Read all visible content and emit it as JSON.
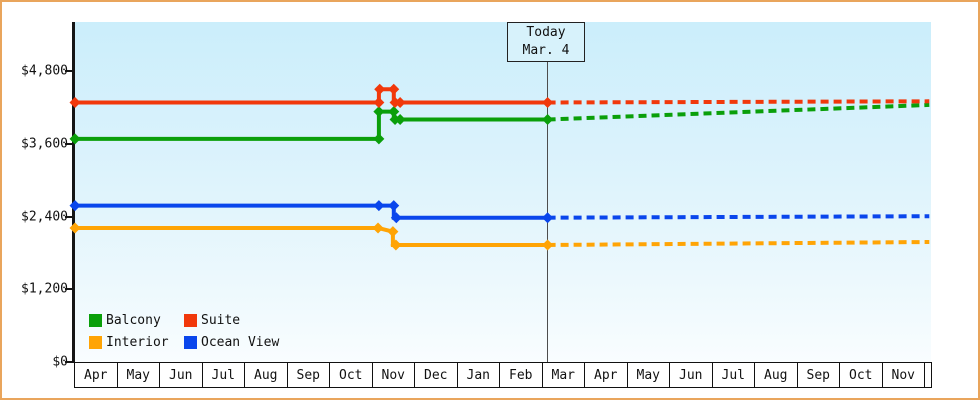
{
  "window": {
    "title": "Cruise price history chart"
  },
  "colors": {
    "frame_border": "#e9a55c",
    "plot_background_top": "#cbeefb",
    "plot_background_bottom": "#f9fdff",
    "axis": "#151515",
    "today_line": "#4d4d4d"
  },
  "chart_data": {
    "type": "line",
    "title": "",
    "xlabel": "",
    "ylabel": "",
    "ylim": [
      0,
      4800
    ],
    "grid": false,
    "legend_position": "bottom-left",
    "x_months": [
      "Apr",
      "May",
      "Jun",
      "Jul",
      "Aug",
      "Sep",
      "Oct",
      "Nov",
      "Dec",
      "Jan",
      "Feb",
      "Mar",
      "Apr",
      "May",
      "Jun",
      "Jul",
      "Aug",
      "Sep",
      "Oct",
      "Nov"
    ],
    "y_ticks": [
      {
        "label": "$0",
        "value": 0
      },
      {
        "label": "$1,200",
        "value": 1200
      },
      {
        "label": "$2,400",
        "value": 2400
      },
      {
        "label": "$3,600",
        "value": 3600
      },
      {
        "label": "$4,800",
        "value": 4800
      }
    ],
    "today": {
      "line1": "Today",
      "line2": "Mar. 4",
      "month_frac": 11.12
    },
    "series": [
      {
        "name": "Balcony",
        "color": "#0a9f0a",
        "solid": [
          [
            0,
            3680
          ],
          [
            7.15,
            3680
          ],
          [
            7.15,
            4130
          ],
          [
            7.5,
            4130
          ],
          [
            7.5,
            4000
          ],
          [
            11.12,
            4000
          ]
        ],
        "markers": [
          [
            0,
            3680
          ],
          [
            7.15,
            3680
          ],
          [
            7.15,
            4130
          ],
          [
            7.5,
            4130
          ],
          [
            7.53,
            4000
          ],
          [
            7.65,
            4000
          ],
          [
            11.12,
            4000
          ]
        ],
        "forecast": [
          [
            11.12,
            4000
          ],
          [
            20.1,
            4240
          ]
        ]
      },
      {
        "name": "Suite",
        "color": "#f1380b",
        "solid": [
          [
            0,
            4280
          ],
          [
            7.15,
            4280
          ],
          [
            7.15,
            4500
          ],
          [
            7.5,
            4500
          ],
          [
            7.5,
            4280
          ],
          [
            11.12,
            4280
          ]
        ],
        "markers": [
          [
            0,
            4280
          ],
          [
            7.15,
            4280
          ],
          [
            7.17,
            4500
          ],
          [
            7.5,
            4500
          ],
          [
            7.53,
            4280
          ],
          [
            7.65,
            4280
          ],
          [
            11.12,
            4280
          ]
        ],
        "forecast": [
          [
            11.12,
            4280
          ],
          [
            20.1,
            4300
          ]
        ]
      },
      {
        "name": "Interior",
        "color": "#ffa405",
        "solid": [
          [
            0,
            2210
          ],
          [
            7.13,
            2210
          ],
          [
            7.48,
            2150
          ],
          [
            7.48,
            1930
          ],
          [
            11.12,
            1930
          ]
        ],
        "markers": [
          [
            0,
            2210
          ],
          [
            7.13,
            2210
          ],
          [
            7.48,
            2150
          ],
          [
            7.55,
            1930
          ],
          [
            11.12,
            1930
          ]
        ],
        "forecast": [
          [
            11.12,
            1930
          ],
          [
            20.1,
            1980
          ]
        ]
      },
      {
        "name": "Ocean View",
        "color": "#0a46ec",
        "solid": [
          [
            0,
            2580
          ],
          [
            7.15,
            2580
          ],
          [
            7.5,
            2580
          ],
          [
            7.5,
            2380
          ],
          [
            11.12,
            2380
          ]
        ],
        "markers": [
          [
            0,
            2580
          ],
          [
            7.15,
            2580
          ],
          [
            7.5,
            2580
          ],
          [
            7.56,
            2380
          ],
          [
            11.12,
            2380
          ]
        ],
        "forecast": [
          [
            11.12,
            2380
          ],
          [
            20.1,
            2405
          ]
        ]
      }
    ],
    "legend_order": [
      "Balcony",
      "Suite",
      "Interior",
      "Ocean View"
    ]
  }
}
